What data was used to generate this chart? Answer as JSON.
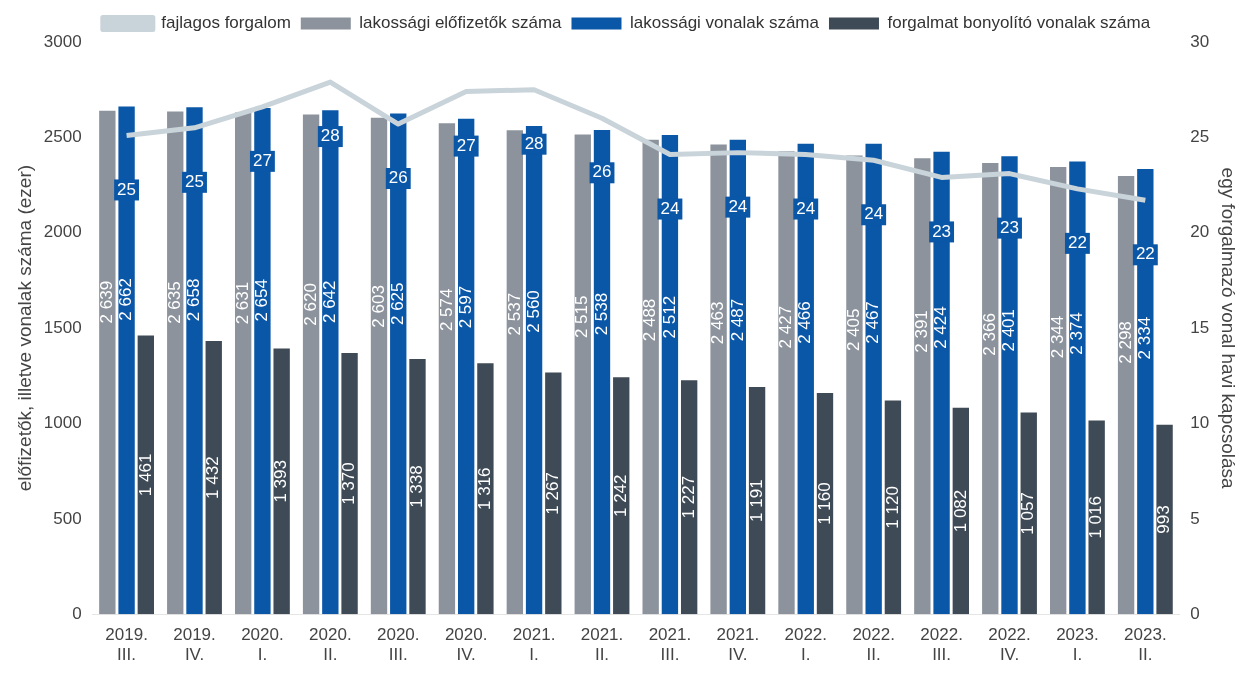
{
  "chart_data": {
    "type": "bar",
    "ylabel": "előfizetők, illetve vonalak száma (ezer)",
    "y2label": "egy forgalmazó vonal havi kapcsolása",
    "categories": [
      "2019.\nIII.",
      "2019.\nIV.",
      "2020.\nI.",
      "2020.\nII.",
      "2020.\nIII.",
      "2020.\nIV.",
      "2021.\nI.",
      "2021.\nII.",
      "2021.\nIII.",
      "2021.\nIV.",
      "2022.\nI.",
      "2022.\nII.",
      "2022.\nIII.",
      "2022.\nIV.",
      "2023.\nI.",
      "2023.\nII."
    ],
    "series": [
      {
        "name": "lakossági előfizetők száma",
        "color": "#8c939c",
        "values": [
          2639,
          2635,
          2631,
          2620,
          2603,
          2574,
          2537,
          2515,
          2488,
          2463,
          2427,
          2405,
          2391,
          2366,
          2344,
          2298
        ],
        "value_labels": [
          "2 639",
          "2 635",
          "2 631",
          "2 620",
          "2 603",
          "2 574",
          "2 537",
          "2 515",
          "2 488",
          "2 463",
          "2 427",
          "2 405",
          "2 391",
          "2 366",
          "2 344",
          "2 298"
        ]
      },
      {
        "name": "lakossági vonalak száma",
        "color": "#0a57a8",
        "values": [
          2662,
          2658,
          2654,
          2642,
          2625,
          2597,
          2560,
          2538,
          2512,
          2487,
          2466,
          2467,
          2424,
          2401,
          2374,
          2334
        ],
        "value_labels": [
          "2 662",
          "2 658",
          "2 654",
          "2 642",
          "2 625",
          "2 597",
          "2 560",
          "2 538",
          "2 512",
          "2 487",
          "2 466",
          "2 467",
          "2 424",
          "2 401",
          "2 374",
          "2 334"
        ]
      },
      {
        "name": "forgalmat bonyolító vonalak száma",
        "color": "#3e4a56",
        "values": [
          1461,
          1432,
          1393,
          1370,
          1338,
          1316,
          1267,
          1242,
          1227,
          1191,
          1160,
          1120,
          1082,
          1057,
          1016,
          993
        ],
        "value_labels": [
          "1 461",
          "1 432",
          "1 393",
          "1 370",
          "1 338",
          "1 316",
          "1 267",
          "1 242",
          "1 227",
          "1 191",
          "1 160",
          "1 120",
          "1 082",
          "1 057",
          "1 016",
          "993"
        ]
      },
      {
        "name": "fajlagos forgalom",
        "type": "line",
        "axis": "y2",
        "color": "#c9d3da",
        "values": [
          25.1,
          25.5,
          26.6,
          27.9,
          25.7,
          27.4,
          27.5,
          26.0,
          24.1,
          24.2,
          24.1,
          23.8,
          22.9,
          23.1,
          22.3,
          21.7
        ],
        "value_labels": [
          "25",
          "25",
          "27",
          "28",
          "26",
          "27",
          "28",
          "26",
          "24",
          "24",
          "24",
          "24",
          "23",
          "23",
          "22",
          "22"
        ]
      }
    ],
    "ylim": [
      0,
      3000
    ],
    "yticks": [
      0,
      500,
      1000,
      1500,
      2000,
      2500,
      3000
    ],
    "y2lim": [
      0,
      30
    ],
    "y2ticks": [
      0,
      5,
      10,
      15,
      20,
      25,
      30
    ],
    "grid": false,
    "legend": "top",
    "marker": "none",
    "line_style": "solid"
  }
}
